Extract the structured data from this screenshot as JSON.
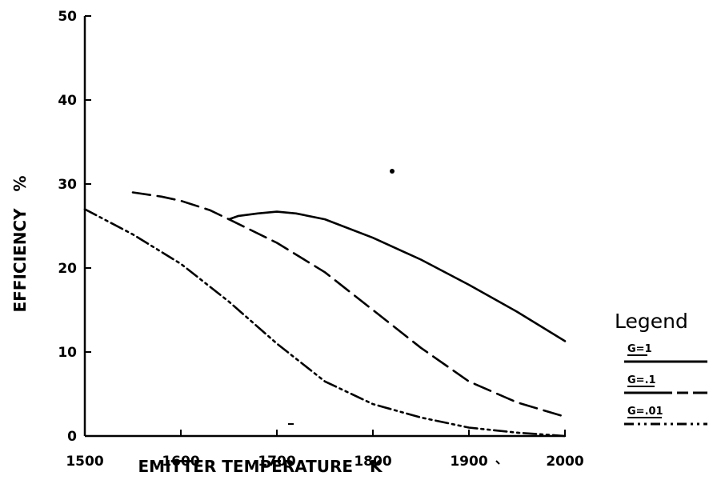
{
  "chart_data": {
    "type": "line",
    "title": "",
    "xlabel": "EMITTER TEMPERATURE   K",
    "ylabel": "EFFICIENCY   %",
    "xlim": [
      1500,
      2000
    ],
    "ylim": [
      0,
      50
    ],
    "x_ticks": [
      "1500",
      "1600",
      "1700",
      "1800",
      "1900",
      "2000"
    ],
    "y_ticks": [
      "0",
      "10",
      "20",
      "30",
      "40",
      "50"
    ],
    "grid": false,
    "legend": {
      "title": "Legend",
      "placement": "right"
    },
    "series": [
      {
        "name": "G=1",
        "style": "solid",
        "x": [
          1650,
          1660,
          1680,
          1700,
          1720,
          1750,
          1800,
          1850,
          1900,
          1950,
          2000
        ],
        "y": [
          25.8,
          26.2,
          26.5,
          26.7,
          26.5,
          25.8,
          23.6,
          21.0,
          18.0,
          14.8,
          11.3
        ]
      },
      {
        "name": "G=.1",
        "style": "dashed",
        "x": [
          1550,
          1580,
          1600,
          1630,
          1650,
          1700,
          1750,
          1800,
          1850,
          1900,
          1950,
          2000
        ],
        "y": [
          29.0,
          28.5,
          28.0,
          26.9,
          25.8,
          23.0,
          19.5,
          15.0,
          10.5,
          6.5,
          4.0,
          2.3
        ]
      },
      {
        "name": "G=.01",
        "style": "dash-dot",
        "x": [
          1500,
          1550,
          1600,
          1650,
          1700,
          1750,
          1800,
          1850,
          1900,
          1950,
          2000
        ],
        "y": [
          27.0,
          24.0,
          20.5,
          16.0,
          11.0,
          6.5,
          3.8,
          2.2,
          1.0,
          0.4,
          0.0
        ]
      }
    ]
  }
}
